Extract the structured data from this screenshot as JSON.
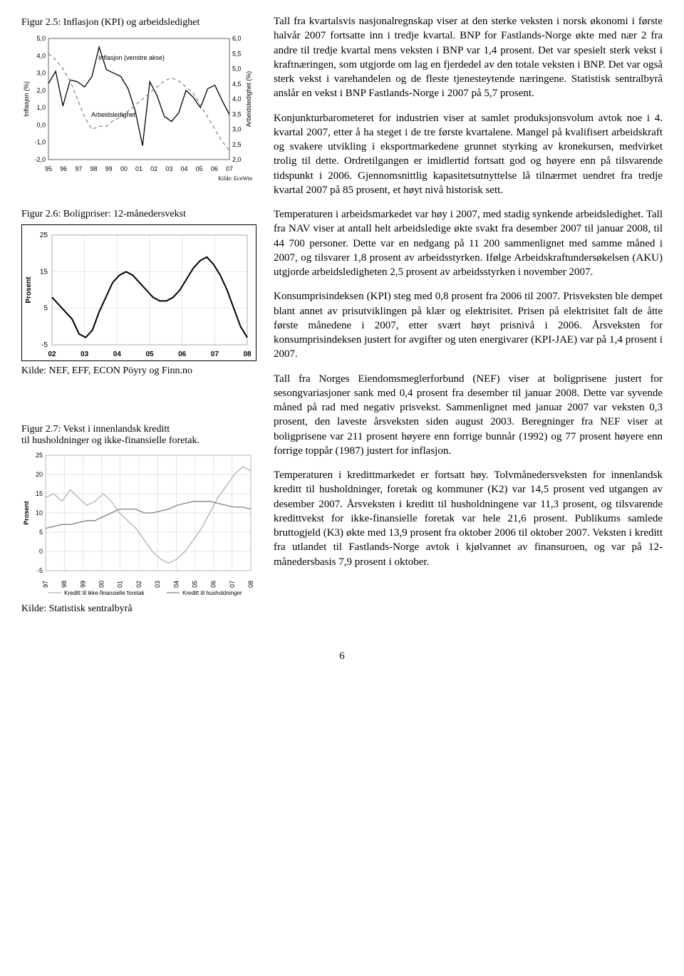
{
  "fig25": {
    "title": "Figur 2.5: Inflasjon (KPI) og arbeidsledighet",
    "left_axis_label": "Inflasjon (%)",
    "right_axis_label": "Arbeidsledighet (%)",
    "left_ticks": [
      "5,0",
      "4,0",
      "3,0",
      "2,0",
      "1,0",
      "0,0",
      "-1,0",
      "-2,0"
    ],
    "right_ticks": [
      "6,0",
      "5,5",
      "5,0",
      "4,5",
      "4,0",
      "3,5",
      "3,0",
      "2,5",
      "2,0"
    ],
    "x_ticks": [
      "95",
      "96",
      "97",
      "98",
      "99",
      "00",
      "01",
      "02",
      "03",
      "04",
      "05",
      "06",
      "07"
    ],
    "series1_label": "Inflasjon (venstre akse)",
    "series2_label": "Arbeidsledighet",
    "kilde": "Kilde: EcoWin",
    "colors": {
      "line1": "#000000",
      "line2": "#808080",
      "grid": "#cccccc",
      "bg": "#ffffff"
    },
    "inflasjon": [
      2.4,
      3.1,
      1.1,
      2.6,
      2.5,
      2.2,
      2.8,
      4.5,
      3.2,
      3.0,
      2.8,
      2.1,
      0.8,
      -1.2,
      2.5,
      1.7,
      0.5,
      0.2,
      0.7,
      2.0,
      1.6,
      1.0,
      2.1,
      2.3,
      1.4,
      0.6
    ],
    "arbeidsledighet": [
      5.5,
      5.3,
      5.0,
      4.6,
      4.0,
      3.4,
      3.0,
      3.1,
      3.1,
      3.3,
      3.4,
      3.6,
      3.8,
      4.0,
      4.2,
      4.4,
      4.6,
      4.7,
      4.6,
      4.4,
      4.2,
      3.8,
      3.4,
      3.0,
      2.6,
      2.3
    ],
    "left_ylim": [
      -2,
      5
    ],
    "right_ylim": [
      2,
      6
    ]
  },
  "fig26": {
    "title": "Figur 2.6: Boligpriser: 12-månedersvekst",
    "y_label": "Prosent",
    "y_ticks": [
      "25",
      "15",
      "5",
      "-5"
    ],
    "x_ticks": [
      "02",
      "03",
      "04",
      "05",
      "06",
      "07",
      "08"
    ],
    "source": "Kilde: NEF, EFF, ECON Pöyry og Finn.no",
    "colors": {
      "line": "#000000",
      "bg": "#ffffff",
      "grid": "#cccccc",
      "border": "#000000"
    },
    "ylim": [
      -5,
      25
    ],
    "values": [
      8,
      6,
      4,
      2,
      -2,
      -3,
      -1,
      4,
      8,
      12,
      14,
      15,
      14,
      12,
      10,
      8,
      7,
      7,
      8,
      10,
      13,
      16,
      18,
      19,
      17,
      14,
      10,
      5,
      0,
      -3
    ]
  },
  "fig27": {
    "title_line1": "Figur 2.7: Vekst i innenlandsk kreditt",
    "title_line2": "til husholdninger og ikke-finansielle foretak.",
    "y_label": "Prosent",
    "y_ticks": [
      "25",
      "20",
      "15",
      "10",
      "5",
      "0",
      "-5"
    ],
    "x_ticks": [
      "97",
      "98",
      "99",
      "00",
      "01",
      "02",
      "03",
      "04",
      "05",
      "06",
      "07",
      "08"
    ],
    "legend1": "Kreditt til ikke-finansielle foretak",
    "legend2": "Kreditt til husholdninger",
    "source": "Kilde: Statistisk sentralbyrå",
    "colors": {
      "line1": "#b0b0b0",
      "line2": "#808080",
      "bg": "#ffffff",
      "grid": "#cccccc"
    },
    "ylim": [
      -5,
      25
    ],
    "foretak": [
      14,
      15,
      13,
      16,
      14,
      12,
      13,
      15,
      13,
      10,
      8,
      6,
      3,
      0,
      -2,
      -3,
      -2,
      0,
      3,
      6,
      10,
      14,
      17,
      20,
      22,
      21
    ],
    "hushold": [
      6,
      6.5,
      7,
      7,
      7.5,
      8,
      8,
      9,
      10,
      11,
      11,
      11,
      10,
      10,
      10.5,
      11,
      12,
      12.5,
      13,
      13,
      13,
      12.5,
      12,
      11.5,
      11.5,
      11
    ]
  },
  "paragraphs": {
    "p1": "Tall fra kvartalsvis nasjonalregnskap viser at den sterke veksten i norsk økonomi i første halvår 2007 fortsatte inn i tredje kvartal. BNP for Fastlands-Norge økte med nær 2 fra andre til tredje kvartal mens veksten i BNP var 1,4 prosent. Det var spesielt sterk vekst i kraftnæringen, som utgjorde om lag en fjerdedel av den totale veksten i BNP. Det var også sterk vekst i varehandelen og de fleste tjenesteytende næringene. Statistisk sentralbyrå anslår en vekst i BNP Fastlands-Norge i 2007 på 5,7 prosent.",
    "p2": "Konjunkturbarometeret for industrien viser at samlet produksjonsvolum avtok noe i 4. kvartal 2007, etter å ha steget i de tre første kvartalene. Mangel på kvalifisert arbeidskraft og svakere utvikling i eksportmarkedene grunnet styrking av kronekursen, medvirket trolig til dette. Ordretilgangen er imidlertid fortsatt god og høyere enn på tilsvarende tidspunkt i 2006. Gjennomsnittlig kapasitetsutnyttelse lå tilnærmet uendret fra tredje kvartal 2007 på 85 prosent, et høyt nivå historisk sett.",
    "p3": "Temperaturen i arbeidsmarkedet var høy i 2007, med stadig synkende arbeidsledighet. Tall fra NAV viser at antall helt arbeidsledige økte svakt fra desember 2007 til januar 2008, til 44 700 personer. Dette var en nedgang på 11 200 sammenlignet med samme måned i 2007, og tilsvarer 1,8 prosent av arbeidsstyrken. Ifølge Arbeidskraftundersøkelsen (AKU) utgjorde arbeidsledigheten 2,5 prosent av arbeidsstyrken i november 2007.",
    "p4": "Konsumprisindeksen (KPI) steg med 0,8 prosent fra 2006 til 2007. Prisveksten ble dempet blant annet av prisutviklingen på klær og elektrisitet. Prisen på elektrisitet falt de åtte første månedene i 2007, etter svært høyt prisnivå i 2006. Årsveksten for konsumprisindeksen justert for avgifter og uten energivarer (KPI-JAE) var på 1,4 prosent i 2007.",
    "p5": "Tall fra Norges Eiendomsmeglerforbund (NEF) viser at boligprisene justert for sesongvariasjoner sank med 0,4 prosent fra desember til januar 2008. Dette var syvende måned på rad med negativ prisvekst. Sammenlignet med januar 2007 var veksten 0,3 prosent, den laveste årsveksten siden august 2003. Beregninger fra NEF viser at boligprisene var 211 prosent høyere enn forrige bunnår (1992) og 77 prosent høyere enn forrige toppår (1987) justert for inflasjon.",
    "p6": "Temperaturen i kredittmarkedet er fortsatt høy. Tolvmånedersveksten for innenlandsk kreditt til husholdninger, foretak og kommuner (K2) var 14,5 prosent ved utgangen av desember 2007. Årsveksten i kreditt til husholdningene var 11,3 prosent, og tilsvarende kredittvekst for ikke-finansielle foretak var hele 21,6 prosent. Publikums samlede bruttogjeld (K3) økte med 13,9 prosent fra oktober 2006 til oktober 2007. Veksten i kreditt fra utlandet til Fastlands-Norge avtok i kjølvannet av finansuroen, og var på 12-månedersbasis 7,9 prosent i oktober."
  },
  "page_number": "6"
}
